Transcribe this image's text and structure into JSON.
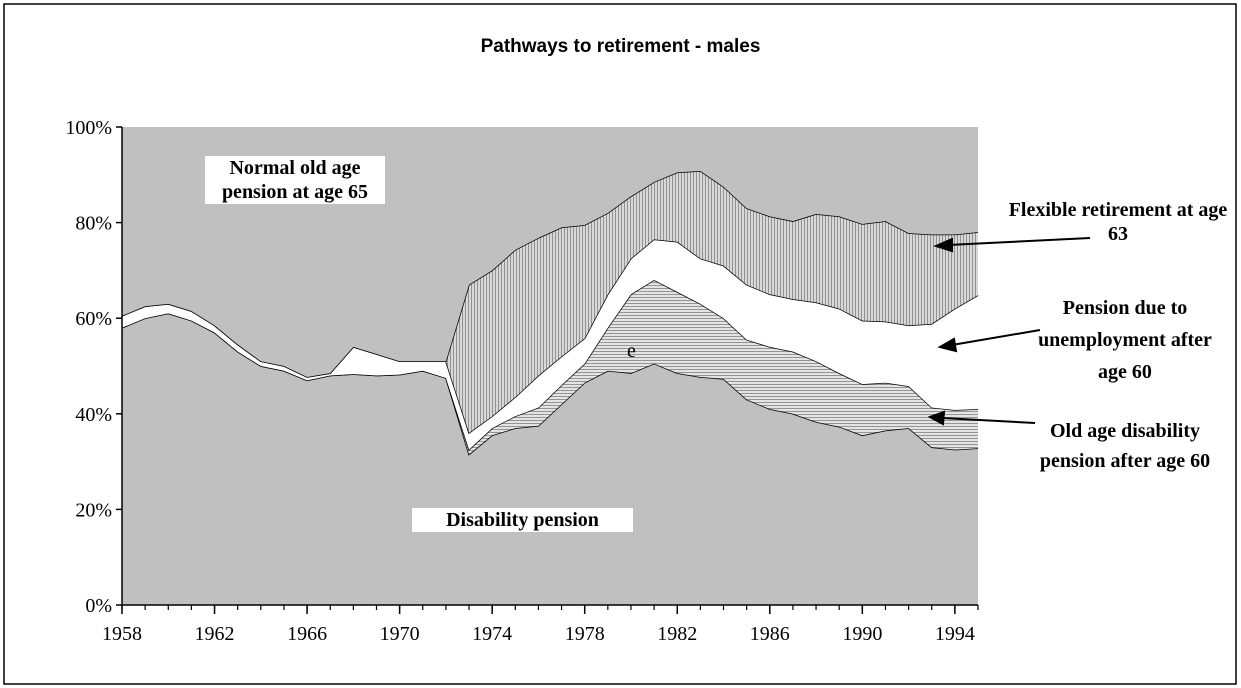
{
  "chart_data": {
    "type": "stacked-area",
    "title": "Pathways to retirement - males",
    "x": [
      1958,
      1959,
      1960,
      1961,
      1962,
      1963,
      1964,
      1965,
      1966,
      1967,
      1968,
      1969,
      1970,
      1971,
      1972,
      1973,
      1974,
      1975,
      1976,
      1977,
      1978,
      1979,
      1980,
      1981,
      1982,
      1983,
      1984,
      1985,
      1986,
      1987,
      1988,
      1989,
      1990,
      1991,
      1992,
      1993,
      1994,
      1995
    ],
    "xlim": [
      1958,
      1995
    ],
    "xticks": [
      1958,
      1962,
      1966,
      1970,
      1974,
      1978,
      1982,
      1986,
      1990,
      1994
    ],
    "ylim": [
      0,
      100
    ],
    "yticks": [
      {
        "value": 0,
        "label": "0%"
      },
      {
        "value": 20,
        "label": "20%"
      },
      {
        "value": 40,
        "label": "40%"
      },
      {
        "value": 60,
        "label": "60%"
      },
      {
        "value": 80,
        "label": "80%"
      },
      {
        "value": 100,
        "label": "100%"
      }
    ],
    "series": [
      {
        "name": "Disability pension",
        "color": "#c0c0c0",
        "pattern": "none",
        "values": [
          58,
          60,
          61,
          59.5,
          57,
          53,
          50,
          49,
          47,
          48,
          48.3,
          48,
          48.2,
          49,
          47.5,
          31.5,
          35.5,
          37,
          37.5,
          42,
          46.5,
          49,
          48.5,
          50.5,
          48.5,
          47.7,
          47.3,
          43,
          41,
          40,
          38.3,
          37.3,
          35.5,
          36.5,
          37,
          33,
          32.5,
          32.8
        ]
      },
      {
        "name": "Old age disability pension after age 60",
        "color": "#e4e4e4",
        "pattern": "horizontal",
        "values": [
          0,
          0,
          0,
          0,
          0,
          0,
          0,
          0,
          0,
          0,
          0,
          0,
          0,
          0,
          0,
          1,
          1.5,
          2.5,
          3.8,
          4,
          4,
          9,
          16.5,
          17.5,
          17,
          15.3,
          12.7,
          12.5,
          13,
          13,
          12.7,
          11.2,
          10.7,
          10,
          8.8,
          8.3,
          8.3,
          8.2
        ]
      },
      {
        "name": "Pension due to unemployment after age 60",
        "color": "#ffffff",
        "pattern": "none",
        "values": [
          2.5,
          2.5,
          2,
          2,
          1.5,
          1.5,
          1,
          1,
          0.7,
          0.5,
          5.7,
          4.5,
          2.8,
          2,
          3.5,
          3.5,
          2.5,
          4,
          6.7,
          6,
          5.3,
          7,
          7.5,
          8.5,
          10.5,
          9.5,
          11,
          11.5,
          11,
          11,
          12.3,
          13.5,
          13.3,
          12.8,
          12.7,
          17.5,
          21.2,
          23.8
        ]
      },
      {
        "name": "Flexible retirement at age 63",
        "color": "#d8d8d8",
        "pattern": "vertical",
        "values": [
          0,
          0,
          0,
          0,
          0,
          0,
          0,
          0,
          0,
          0,
          0,
          0,
          0,
          0,
          0,
          31,
          30.5,
          30.8,
          28.8,
          27,
          23.7,
          17,
          13,
          12,
          14.5,
          18.3,
          16.5,
          16,
          16.3,
          16.3,
          18.5,
          19.3,
          20.2,
          21,
          19.3,
          18.7,
          15.5,
          13.2
        ]
      },
      {
        "name": "Normal old age pension at age 65",
        "color": "#c0c0c0",
        "pattern": "none",
        "values": [
          39.5,
          37.5,
          37,
          38.5,
          41.5,
          45.5,
          49,
          50,
          52.3,
          51.5,
          46,
          47.5,
          49,
          49,
          49,
          33,
          30,
          25.7,
          23.2,
          21,
          20.5,
          18,
          14.5,
          11.5,
          9.5,
          9.2,
          12.5,
          17,
          18.7,
          19.7,
          18.2,
          18.7,
          20.3,
          19.7,
          22.2,
          22.5,
          22.5,
          22
        ]
      }
    ],
    "annotations": [
      "e"
    ]
  }
}
